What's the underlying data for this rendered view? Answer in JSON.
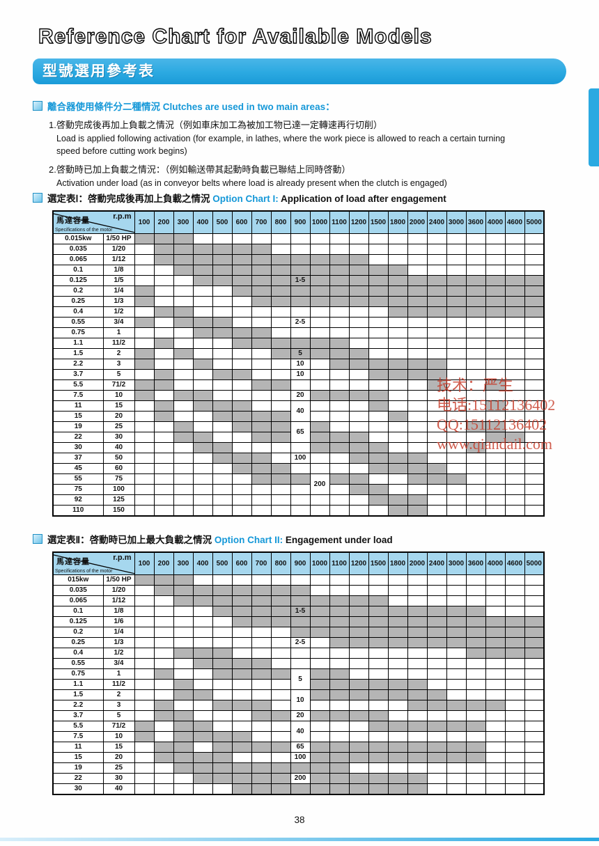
{
  "page": {
    "title": "Reference Chart for Available Models",
    "banner": "型號選用參考表",
    "page_number": "38"
  },
  "colors": {
    "accent_blue": "#2ba9e1",
    "table_header_blue": "#a6d7ee",
    "gray_cell": "#b5b5b5",
    "watermark_red": "#c63a28",
    "heading_blue": "#1598d8"
  },
  "intro": {
    "heading": "離合器使用條件分二種情況 Clutches are used in two main areas：",
    "items": [
      {
        "zh": "1.啓動完成後再加上負載之情況（例如車床加工為被加工物已達一定轉速再行切削）",
        "en": "Load is applied following activation (for example, in lathes, where the work piece is allowed to reach a certain turning speed before cutting work begins)"
      },
      {
        "zh": "2.啓動時已加上負載之情況：（例如輸送帶其起動時負載已聯結上同時啓動）",
        "en": "Activation under load (as in conveyor belts where load is already present when the clutch is engaged)"
      }
    ]
  },
  "watermark": {
    "lines": [
      "技术：严生",
      "电话:15112136402",
      "QQ:15112136402",
      "www.qiandail.com"
    ]
  },
  "corner": {
    "rpm": "r.p.m",
    "zh": "馬達容量",
    "en": "Specifications of the motor"
  },
  "rpm_columns": [
    100,
    200,
    300,
    400,
    500,
    600,
    700,
    800,
    900,
    1000,
    1100,
    1200,
    1500,
    1800,
    2000,
    2400,
    3000,
    3600,
    4000,
    4600,
    5000
  ],
  "charts": [
    {
      "title_zh": "選定表Ⅰ：啓動完成後再加上負載之情況 ",
      "title_en": "Option Chart I:",
      "title_desc": " Application of load after engagement",
      "rows": [
        {
          "kw": "0.015kw",
          "hp": "1/50 HP",
          "gray": [
            100,
            200,
            300
          ]
        },
        {
          "kw": "0.035",
          "hp": "1/20",
          "gray": [
            200,
            300,
            400,
            500,
            600,
            700
          ]
        },
        {
          "kw": "0.065",
          "hp": "1/12",
          "gray": [
            200,
            300,
            400,
            500,
            600,
            700,
            800,
            900,
            1000,
            1100,
            1200
          ]
        },
        {
          "kw": "0.1",
          "hp": "1/8",
          "gray": [
            300,
            400,
            500,
            600,
            700,
            800,
            900,
            1000,
            1100,
            1200,
            1500,
            1800
          ]
        },
        {
          "kw": "0.125",
          "hp": "1/5",
          "gray": [
            400,
            500,
            600,
            700,
            800,
            900,
            1000,
            1100,
            1200,
            1500,
            1800,
            2000,
            2400,
            3000,
            3600,
            4000,
            4600,
            5000
          ],
          "label": {
            "rpm": 900,
            "text": "1-5",
            "on_gray": true
          }
        },
        {
          "kw": "0.2",
          "hp": "1/4",
          "gray": [
            100,
            600,
            700,
            800,
            900,
            1000,
            1100,
            1200,
            1500,
            1800,
            2000,
            2400,
            3000,
            3600,
            4000,
            4600,
            5000
          ]
        },
        {
          "kw": "0.25",
          "hp": "1/3",
          "gray": [
            100,
            700,
            800,
            900,
            1000,
            1100,
            1200,
            1500,
            1800,
            2000,
            2400,
            3000,
            3600,
            4000,
            4600,
            5000
          ]
        },
        {
          "kw": "0.4",
          "hp": "1/2",
          "gray": [
            200,
            300,
            1800,
            2000,
            2400,
            3000,
            3600,
            4000,
            4600,
            5000
          ]
        },
        {
          "kw": "0.55",
          "hp": "3/4",
          "gray": [
            100,
            300,
            400,
            500
          ],
          "label": {
            "rpm": 900,
            "text": "2-5"
          }
        },
        {
          "kw": "0.75",
          "hp": "1",
          "gray": [
            400,
            500,
            600,
            700
          ]
        },
        {
          "kw": "1.1",
          "hp": "11/2",
          "gray": [
            200,
            600,
            700,
            800,
            900,
            1000,
            1100
          ]
        },
        {
          "kw": "1.5",
          "hp": "2",
          "gray": [
            100,
            300,
            800,
            1000,
            1100,
            1200
          ],
          "label": {
            "rpm": 900,
            "text": "5",
            "on_gray": true
          }
        },
        {
          "kw": "2.2",
          "hp": "3",
          "gray": [
            100,
            400,
            1100,
            1200,
            1500,
            1800,
            2000,
            2400
          ],
          "label": {
            "rpm": 900,
            "text": "10"
          }
        },
        {
          "kw": "3.7",
          "hp": "5",
          "gray": [
            200,
            500,
            600,
            1500,
            1800,
            2000,
            2400
          ],
          "label": {
            "rpm": 900,
            "text": "10"
          }
        },
        {
          "kw": "5.5",
          "hp": "71/2",
          "gray": [
            100,
            200,
            700,
            800,
            2400,
            4000
          ]
        },
        {
          "kw": "7.5",
          "hp": "10",
          "gray": [
            100,
            300,
            400,
            1000,
            1100,
            1200,
            1500
          ],
          "label": {
            "rpm": 900,
            "text": "20"
          }
        },
        {
          "kw": "11",
          "hp": "15",
          "gray": [
            200,
            400,
            500,
            600,
            1500,
            4000
          ],
          "label": {
            "rpm": 900,
            "text": "40",
            "span": 2
          }
        },
        {
          "kw": "15",
          "hp": "20",
          "gray": [
            200,
            500,
            600,
            700,
            800,
            1800
          ]
        },
        {
          "kw": "19",
          "hp": "25",
          "gray": [
            300,
            600,
            700,
            800,
            1000,
            3600,
            4000
          ],
          "label": {
            "rpm": 900,
            "text": "65",
            "span": 2
          }
        },
        {
          "kw": "22",
          "hp": "30",
          "gray": [
            300,
            400,
            700,
            800,
            1000,
            1100,
            1200,
            4000,
            4600
          ]
        },
        {
          "kw": "30",
          "hp": "40",
          "gray": [
            400,
            500,
            1000,
            1100,
            1200,
            1500,
            3600
          ]
        },
        {
          "kw": "37",
          "hp": "50",
          "gray": [
            500,
            600,
            700,
            1200,
            1500,
            1800,
            2000
          ],
          "label": {
            "rpm": 900,
            "text": "100"
          }
        },
        {
          "kw": "45",
          "hp": "60",
          "gray": [
            600,
            700,
            800,
            1500,
            1800,
            2000,
            2400
          ]
        },
        {
          "kw": "55",
          "hp": "75",
          "gray": [
            700,
            800,
            900,
            1100,
            1200,
            2000,
            2400,
            3000
          ],
          "label": {
            "rpm": 1000,
            "text": "200",
            "span": 2
          }
        },
        {
          "kw": "75",
          "hp": "100",
          "gray": [
            1200,
            1500
          ]
        },
        {
          "kw": "92",
          "hp": "125",
          "gray": [
            1500,
            1800,
            2000
          ]
        },
        {
          "kw": "110",
          "hp": "150",
          "gray": [
            1800,
            2000
          ]
        }
      ]
    },
    {
      "title_zh": "選定表Ⅱ：啓動時已加上最大負載之情況 ",
      "title_en": "Option Chart II:",
      "title_desc": " Engagement under load",
      "rows": [
        {
          "kw": "015kw",
          "hp": "1/50 HP",
          "gray": [
            100,
            200,
            300
          ]
        },
        {
          "kw": "0.035",
          "hp": "1/20",
          "gray": [
            200,
            300,
            400,
            500,
            600,
            700,
            800,
            900
          ]
        },
        {
          "kw": "0.065",
          "hp": "1/12",
          "gray": [
            300,
            400,
            500,
            600,
            700,
            800,
            900,
            1000,
            1100,
            1200,
            1500
          ]
        },
        {
          "kw": "0.1",
          "hp": "1/8",
          "gray": [
            500,
            600,
            700,
            800,
            900,
            1000,
            1100,
            1200,
            1500,
            1800,
            2000,
            2400,
            3000,
            3600
          ],
          "label": {
            "rpm": 900,
            "text": "1-5",
            "on_gray": true
          }
        },
        {
          "kw": "0.125",
          "hp": "1/6",
          "gray": [
            600,
            700,
            800,
            900,
            1000,
            1100,
            1200,
            1500,
            1800,
            2000,
            2400,
            3000,
            3600,
            4000,
            4600,
            5000
          ]
        },
        {
          "kw": "0.2",
          "hp": "1/4",
          "gray": [
            900,
            1000,
            1100,
            1200,
            1500,
            1800,
            2000,
            2400,
            3000,
            3600,
            4000,
            4600,
            5000
          ]
        },
        {
          "kw": "0.25",
          "hp": "1/3",
          "gray": [
            1100,
            1200,
            1500,
            1800,
            2000,
            2400,
            3000,
            3600,
            4000,
            4600,
            5000
          ],
          "label": {
            "rpm": 900,
            "text": "2-5"
          }
        },
        {
          "kw": "0.4",
          "hp": "1/2",
          "gray": [
            300,
            400,
            500,
            3600,
            4000,
            4600,
            5000
          ]
        },
        {
          "kw": "0.55",
          "hp": "3/4",
          "gray": [
            400,
            500,
            600,
            700
          ]
        },
        {
          "kw": "0.75",
          "hp": "1",
          "gray": [
            200,
            500,
            600,
            700,
            800,
            1000,
            1100
          ],
          "label": {
            "rpm": 900,
            "text": "5",
            "span": 2
          }
        },
        {
          "kw": "1.1",
          "hp": "11/2",
          "gray": [
            300,
            1000,
            1100,
            1200,
            1500,
            1800,
            2000
          ]
        },
        {
          "kw": "1.5",
          "hp": "2",
          "gray": [
            300,
            400,
            1000,
            1100,
            1200,
            1500,
            1800,
            2000,
            2400
          ],
          "label": {
            "rpm": 900,
            "text": "10",
            "span": 2
          }
        },
        {
          "kw": "2.2",
          "hp": "3",
          "gray": [
            200,
            500,
            600,
            700,
            2000,
            2400,
            3000,
            3600,
            4000
          ]
        },
        {
          "kw": "3.7",
          "hp": "5",
          "gray": [
            200,
            300,
            700,
            800,
            1000,
            1100,
            1200,
            1500
          ],
          "label": {
            "rpm": 900,
            "text": "20"
          }
        },
        {
          "kw": "5.5",
          "hp": "71/2",
          "gray": [
            100,
            300,
            400,
            1500,
            1800,
            2000,
            2400,
            3000,
            3600
          ],
          "label": {
            "rpm": 900,
            "text": "40",
            "span": 2
          }
        },
        {
          "kw": "7.5",
          "hp": "10",
          "gray": [
            100,
            300,
            400,
            500,
            600
          ]
        },
        {
          "kw": "11",
          "hp": "15",
          "gray": [
            200,
            300,
            500,
            600,
            700,
            800,
            1000,
            1100,
            1200,
            1500,
            1800,
            2000,
            2400,
            3000,
            3600
          ],
          "label": {
            "rpm": 900,
            "text": "65"
          }
        },
        {
          "kw": "15",
          "hp": "20",
          "gray": [
            200,
            300,
            400,
            500,
            1000,
            1100,
            1200,
            1500,
            1800,
            2000,
            2400,
            3000,
            3600
          ],
          "label": {
            "rpm": 900,
            "text": "100"
          }
        },
        {
          "kw": "19",
          "hp": "25",
          "gray": [
            300,
            400,
            500,
            600,
            700,
            800,
            900,
            1000,
            1100
          ]
        },
        {
          "kw": "22",
          "hp": "30",
          "gray": [
            400,
            500,
            600,
            700,
            800,
            1000,
            1100,
            1200,
            1500,
            1800,
            2000
          ],
          "label": {
            "rpm": 900,
            "text": "200"
          }
        },
        {
          "kw": "30",
          "hp": "40",
          "gray": [
            600,
            700,
            800,
            900,
            1000,
            1100,
            1200,
            1500,
            1800,
            2000
          ]
        }
      ]
    }
  ]
}
